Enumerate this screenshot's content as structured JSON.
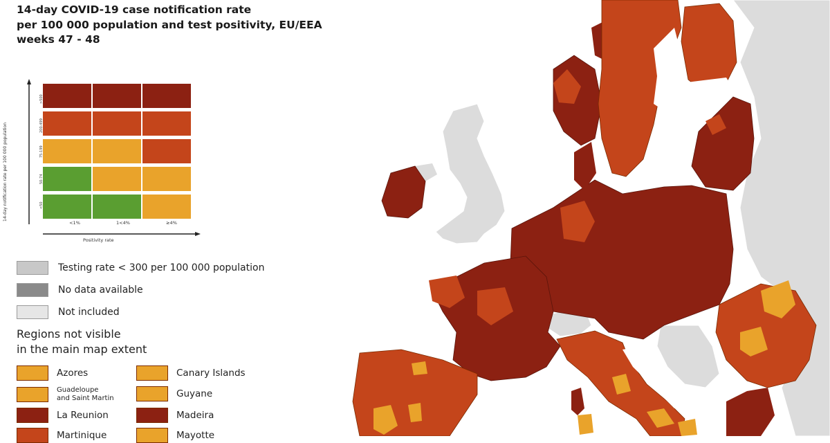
{
  "title_lines": [
    "14-day COVID-19 case notification rate",
    "per 100 000 population and test positivity, EU/EEA",
    "weeks 47 - 48"
  ],
  "colors": {
    "dark_red": "#8c2112",
    "red": "#c4451b",
    "orange": "#e9a32b",
    "green": "#5a9e31",
    "light_grey": "#dcdcdc",
    "grey": "#8a8a8a",
    "sea": "#ffffff"
  },
  "matrix": {
    "y_axis_label": "14-day notification rate per 100 000 population",
    "x_axis_label": "Positivity rate",
    "x_ticks": [
      "<1%",
      "1<4%",
      "≥4%"
    ],
    "y_ticks": [
      ">500",
      "200-499",
      "75-199",
      "50-74",
      "<50"
    ],
    "grid": [
      [
        "dark_red",
        "dark_red",
        "dark_red"
      ],
      [
        "red",
        "red",
        "red"
      ],
      [
        "orange",
        "orange",
        "red"
      ],
      [
        "green",
        "orange",
        "orange"
      ],
      [
        "green",
        "green",
        "orange"
      ]
    ]
  },
  "legend": {
    "testing": "Testing rate < 300 per 100 000 population",
    "no_data": "No data available",
    "not_included": "Not included"
  },
  "regions_heading": [
    "Regions not visible",
    "in the main map extent"
  ],
  "regions": [
    {
      "name": "Azores",
      "color": "orange"
    },
    {
      "name": "Canary Islands",
      "color": "orange"
    },
    {
      "name": "Guadeloupe",
      "name2": "and Saint Martin",
      "color": "orange"
    },
    {
      "name": "Guyane",
      "color": "orange"
    },
    {
      "name": "La Reunion",
      "color": "dark_red"
    },
    {
      "name": "Madeira",
      "color": "dark_red"
    },
    {
      "name": "Martinique",
      "color": "red"
    },
    {
      "name": "Mayotte",
      "color": "orange"
    }
  ]
}
